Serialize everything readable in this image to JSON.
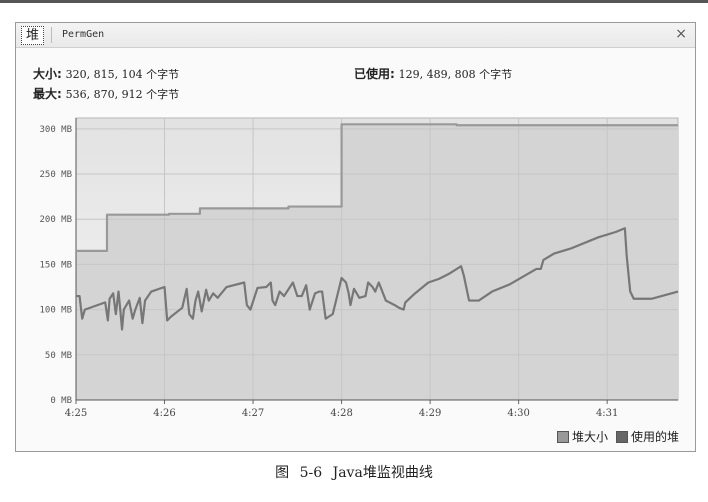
{
  "tabs": {
    "heap": "堆",
    "permgen": "PermGen",
    "close": "×"
  },
  "info": {
    "size_label": "大小:",
    "size_value": "320, 815, 104 个字节",
    "max_label": "最大:",
    "max_value": "536, 870, 912 个字节",
    "used_label": "已使用:",
    "used_value": "129, 489, 808 个字节"
  },
  "chart_data": {
    "type": "area",
    "x_ticks": [
      "4:25",
      "4:26",
      "4:27",
      "4:28",
      "4:29",
      "4:30",
      "4:31"
    ],
    "y_ticks": [
      "0 MB",
      "50 MB",
      "100 MB",
      "150 MB",
      "200 MB",
      "250 MB",
      "300 MB"
    ],
    "ylim": [
      0,
      312
    ],
    "xlim_minutes": [
      0,
      6.8
    ],
    "grid": true,
    "legend_position": "bottom-right",
    "series": [
      {
        "name": "堆大小",
        "color": "#999999",
        "points": [
          [
            0,
            165
          ],
          [
            0.35,
            165
          ],
          [
            0.35,
            205
          ],
          [
            1.05,
            205
          ],
          [
            1.05,
            206
          ],
          [
            1.4,
            206
          ],
          [
            1.4,
            212
          ],
          [
            2.4,
            212
          ],
          [
            2.4,
            214
          ],
          [
            3.0,
            214
          ],
          [
            3.0,
            305
          ],
          [
            4.3,
            305
          ],
          [
            4.3,
            304
          ],
          [
            6.8,
            304
          ]
        ]
      },
      {
        "name": "使用的堆",
        "color": "#777777",
        "points": [
          [
            0,
            115
          ],
          [
            0.04,
            115
          ],
          [
            0.07,
            90
          ],
          [
            0.1,
            100
          ],
          [
            0.33,
            108
          ],
          [
            0.36,
            88
          ],
          [
            0.38,
            112
          ],
          [
            0.42,
            118
          ],
          [
            0.45,
            95
          ],
          [
            0.48,
            120
          ],
          [
            0.5,
            100
          ],
          [
            0.52,
            78
          ],
          [
            0.54,
            100
          ],
          [
            0.6,
            110
          ],
          [
            0.64,
            90
          ],
          [
            0.67,
            100
          ],
          [
            0.72,
            113
          ],
          [
            0.75,
            85
          ],
          [
            0.78,
            110
          ],
          [
            0.85,
            120
          ],
          [
            1.0,
            125
          ],
          [
            1.03,
            88
          ],
          [
            1.07,
            92
          ],
          [
            1.2,
            102
          ],
          [
            1.25,
            123
          ],
          [
            1.28,
            95
          ],
          [
            1.32,
            90
          ],
          [
            1.35,
            110
          ],
          [
            1.38,
            120
          ],
          [
            1.42,
            98
          ],
          [
            1.47,
            122
          ],
          [
            1.5,
            110
          ],
          [
            1.55,
            118
          ],
          [
            1.6,
            113
          ],
          [
            1.7,
            125
          ],
          [
            1.9,
            130
          ],
          [
            1.93,
            105
          ],
          [
            1.97,
            100
          ],
          [
            2.05,
            124
          ],
          [
            2.15,
            125
          ],
          [
            2.2,
            130
          ],
          [
            2.22,
            110
          ],
          [
            2.25,
            105
          ],
          [
            2.3,
            120
          ],
          [
            2.35,
            115
          ],
          [
            2.45,
            130
          ],
          [
            2.5,
            115
          ],
          [
            2.55,
            115
          ],
          [
            2.6,
            127
          ],
          [
            2.64,
            100
          ],
          [
            2.7,
            118
          ],
          [
            2.75,
            120
          ],
          [
            2.78,
            120
          ],
          [
            2.82,
            90
          ],
          [
            2.9,
            95
          ],
          [
            3.0,
            135
          ],
          [
            3.05,
            130
          ],
          [
            3.08,
            118
          ],
          [
            3.1,
            105
          ],
          [
            3.14,
            123
          ],
          [
            3.2,
            113
          ],
          [
            3.27,
            115
          ],
          [
            3.3,
            130
          ],
          [
            3.35,
            125
          ],
          [
            3.38,
            120
          ],
          [
            3.42,
            130
          ],
          [
            3.5,
            110
          ],
          [
            3.6,
            105
          ],
          [
            3.65,
            102
          ],
          [
            3.7,
            100
          ],
          [
            3.72,
            108
          ],
          [
            3.83,
            118
          ],
          [
            3.98,
            130
          ],
          [
            4.1,
            134
          ],
          [
            4.22,
            140
          ],
          [
            4.35,
            148
          ],
          [
            4.38,
            138
          ],
          [
            4.44,
            110
          ],
          [
            4.55,
            110
          ],
          [
            4.7,
            120
          ],
          [
            4.9,
            128
          ],
          [
            5.2,
            145
          ],
          [
            5.25,
            145
          ],
          [
            5.28,
            155
          ],
          [
            5.4,
            162
          ],
          [
            5.6,
            168
          ],
          [
            5.9,
            180
          ],
          [
            6.1,
            186
          ],
          [
            6.2,
            190
          ],
          [
            6.22,
            160
          ],
          [
            6.26,
            120
          ],
          [
            6.3,
            112
          ],
          [
            6.5,
            112
          ],
          [
            6.8,
            120
          ]
        ]
      }
    ]
  },
  "legend": {
    "heap_size": "堆大小",
    "used_heap": "使用的堆"
  },
  "caption": "图 5-6 Java堆监视曲线"
}
